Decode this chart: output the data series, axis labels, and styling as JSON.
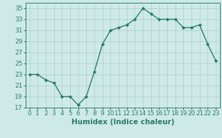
{
  "x": [
    0,
    1,
    2,
    3,
    4,
    5,
    6,
    7,
    8,
    9,
    10,
    11,
    12,
    13,
    14,
    15,
    16,
    17,
    18,
    19,
    20,
    21,
    22,
    23
  ],
  "y": [
    23,
    23,
    22,
    21.5,
    19,
    19,
    17.5,
    19,
    23.5,
    28.5,
    31,
    31.5,
    32,
    33,
    35,
    34,
    33,
    33,
    33,
    31.5,
    31.5,
    32,
    28.5,
    25.5
  ],
  "line_color": "#2a7a6a",
  "marker": "D",
  "marker_size": 2.2,
  "bg_color": "#ceeae6",
  "grid_color": "#aed0cc",
  "xlabel": "Humidex (Indice chaleur)",
  "ylabel": "",
  "xlim": [
    -0.5,
    23.5
  ],
  "ylim": [
    17,
    36
  ],
  "yticks": [
    17,
    19,
    21,
    23,
    25,
    27,
    29,
    31,
    33,
    35
  ],
  "xticks": [
    0,
    1,
    2,
    3,
    4,
    5,
    6,
    7,
    8,
    9,
    10,
    11,
    12,
    13,
    14,
    15,
    16,
    17,
    18,
    19,
    20,
    21,
    22,
    23
  ],
  "tick_color": "#2a7a6a",
  "label_color": "#2a7a6a",
  "font_size": 6.5,
  "xlabel_fontsize": 7.5,
  "linewidth": 1.0
}
